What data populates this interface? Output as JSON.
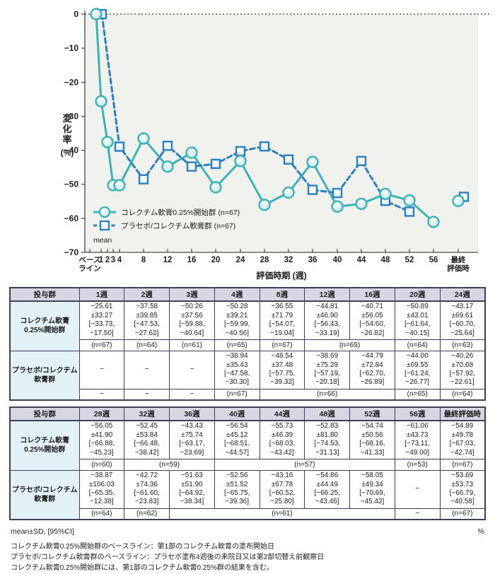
{
  "chart": {
    "y_axis_label": "変化率",
    "y_axis_unit": "(%)",
    "x_axis_label": "評価時期 (週)",
    "y_ticks": [
      0,
      -10,
      -20,
      -30,
      -40,
      -50,
      -60,
      -70
    ],
    "mean_label": "mean",
    "colors": {
      "series1": "#3ab3b6",
      "series1_fill": "#d6edf0",
      "series2": "#2e7fc2",
      "series2_fill": "#eaf4fb",
      "plot_bg": "#f1f1ee",
      "axis": "#4a4a4a"
    }
  },
  "chart_data": {
    "type": "line",
    "title": "",
    "xlabel": "評価時期 (週)",
    "ylabel": "変化率(%)",
    "ylim": [
      -70,
      0
    ],
    "grid": false,
    "legend_position": "inside lower-left",
    "x": [
      "ベース\nライン",
      "1",
      "2",
      "3",
      "4",
      "8",
      "12",
      "16",
      "20",
      "24",
      "28",
      "32",
      "36",
      "40",
      "44",
      "48",
      "52",
      "56",
      "最終\n評価時"
    ],
    "series": [
      {
        "name": "コレクチム軟膏0.25%開始群 (n=67)",
        "marker": "circle",
        "line_style": "solid",
        "values": [
          0,
          -25.61,
          -37.58,
          -50.26,
          -50.28,
          -36.55,
          -44.81,
          -40.71,
          -50.89,
          -43.17,
          -56.05,
          -52.45,
          -43.43,
          -56.54,
          -55.73,
          -52.83,
          -54.74,
          -61.06,
          -54.89
        ]
      },
      {
        "name": "プラセボ/コレクチム軟膏群 (n=67)",
        "marker": "square",
        "line_style": "dashed",
        "values": [
          0,
          null,
          null,
          null,
          -38.94,
          -48.54,
          -38.69,
          -44.79,
          -44.0,
          -40.26,
          -38.87,
          -42.72,
          -51.63,
          -52.56,
          -43.16,
          -54.86,
          -58.05,
          null,
          -53.69
        ]
      }
    ]
  },
  "tables": [
    {
      "corner_header": "投与群",
      "col_headers": [
        "1週",
        "2週",
        "3週",
        "4週",
        "8週",
        "12週",
        "16週",
        "20週",
        "24週"
      ],
      "rows": [
        {
          "group": "コレクチム軟膏\n0.25%開始群",
          "values": [
            "−25.61\n±33.27\n[−33.73,\n−17.50]",
            "−37.58\n±39.85\n[−47.53,\n−27.62]",
            "−50.26\n±37.56\n[−59.88,\n−40.64]",
            "−50.28\n±39.21\n[−59.99,\n−40.56]",
            "−36.55\n±71.79\n[−54.07,\n−19.04]",
            "−44.81\n±46.90\n[−56.43,\n−33.19]",
            "−40.71\n±56.05\n[−54.60,\n−26.82]",
            "−50.89\n±43.01\n[−61.64,\n−40.15]",
            "−43.17\n±69.61\n[−60.70,\n−25.64]"
          ],
          "n_cells": [
            {
              "text": "(n=67)",
              "span": 1
            },
            {
              "text": "(n=64)",
              "span": 1
            },
            {
              "text": "(n=61)",
              "span": 1
            },
            {
              "text": "(n=65)",
              "span": 1
            },
            {
              "text": "(n=67)",
              "span": 1
            },
            {
              "text": "(n=65)",
              "span": 2
            },
            {
              "text": "(n=64)",
              "span": 1
            },
            {
              "text": "(n=63)",
              "span": 1
            }
          ]
        },
        {
          "group": "プラセボ/コレクチム\n軟膏群",
          "values": [
            "−",
            "−",
            "−",
            "−38.94\n±35.43\n[−47.58,\n−30.30]",
            "−48.54\n±37.48\n[−57.75,\n−39.32]",
            "−38.69\n±75.29\n[−57.19,\n−20.18]",
            "−44.79\n±72.84\n[−62.70,\n−26.89]",
            "−44.00\n±69.55\n[−61.24,\n−26.77]",
            "−40.26\n±70.68\n[−57.92,\n−22.61]"
          ],
          "n_cells": [
            {
              "text": "−",
              "span": 1
            },
            {
              "text": "−",
              "span": 1
            },
            {
              "text": "−",
              "span": 1
            },
            {
              "text": "(n=67)",
              "span": 1
            },
            {
              "text": "(n=66)",
              "span": 3
            },
            {
              "text": "(n=65)",
              "span": 1
            },
            {
              "text": "(n=64)",
              "span": 1
            }
          ]
        }
      ]
    },
    {
      "corner_header": "投与群",
      "col_headers": [
        "28週",
        "32週",
        "36週",
        "40週",
        "44週",
        "48週",
        "52週",
        "56週",
        "最終評価時"
      ],
      "rows": [
        {
          "group": "コレクチム軟膏\n0.25%開始群",
          "values": [
            "−56.05\n±41.90\n[−66.88,\n−45.23]",
            "−52.45\n±53.84\n[−66.48,\n−38.42]",
            "−43.43\n±75.74\n[−63.17,\n−23.69]",
            "−56.54\n±45.12\n[−68.51,\n−44.57]",
            "−55.73\n±46.39\n[−68.03,\n−43.42]",
            "−52.83\n±81.80\n[−74.53,\n−31.13]",
            "−54.74\n±50.56\n[−68.16,\n−41.33]",
            "−61.06\n±43.73\n[−73.11,\n−49.00]",
            "−54.89\n±49.78\n[−67.03,\n−42.74]"
          ],
          "n_cells": [
            {
              "text": "(n=60)",
              "span": 1
            },
            {
              "text": "(n=59)",
              "span": 2
            },
            {
              "text": "(n=57)",
              "span": 4
            },
            {
              "text": "(n=53)",
              "span": 1
            },
            {
              "text": "(n=67)",
              "span": 1
            }
          ]
        },
        {
          "group": "プラセボ/コレクチム\n軟膏群",
          "values": [
            "−38.87\n±106.03\n[−65.35,\n−12.38]",
            "−42.72\n±74.36\n[−61.60,\n−23.83]",
            "−51.63\n±51.90\n[−64.92,\n−38.34]",
            "−52.56\n±51.52\n[−65.75,\n−39.36]",
            "−43.16\n±67.78\n[−60.52,\n−25.80]",
            "−54.86\n±44.49\n[−66.25,\n−43.46]",
            "−58.05\n±49.34\n[−70.69,\n−45.42]",
            "−",
            "−53.69\n±53.73\n[−66.79,\n−40.58]"
          ],
          "n_cells": [
            {
              "text": "(n=64)",
              "span": 1
            },
            {
              "text": "(n=62)",
              "span": 1
            },
            {
              "text": "(n=61)",
              "span": 5
            },
            {
              "text": "−",
              "span": 1
            },
            {
              "text": "(n=67)",
              "span": 1
            }
          ]
        }
      ]
    }
  ],
  "footer": {
    "stat_note": "mean±SD, [95%CI]",
    "unit": "%",
    "notes": [
      "コレクチム軟膏0.25%開始群のベースライン：第1部のコレクチム軟膏の塗布開始日",
      "プラセボ/コレクチム軟膏群のベースライン：プラセボ塗布4週後の来院日又は第2部切替え前観察日",
      "コレクチム軟膏0.25%開始群には、第1部のコレクチム軟膏0.25%群の結果を含む。"
    ]
  }
}
